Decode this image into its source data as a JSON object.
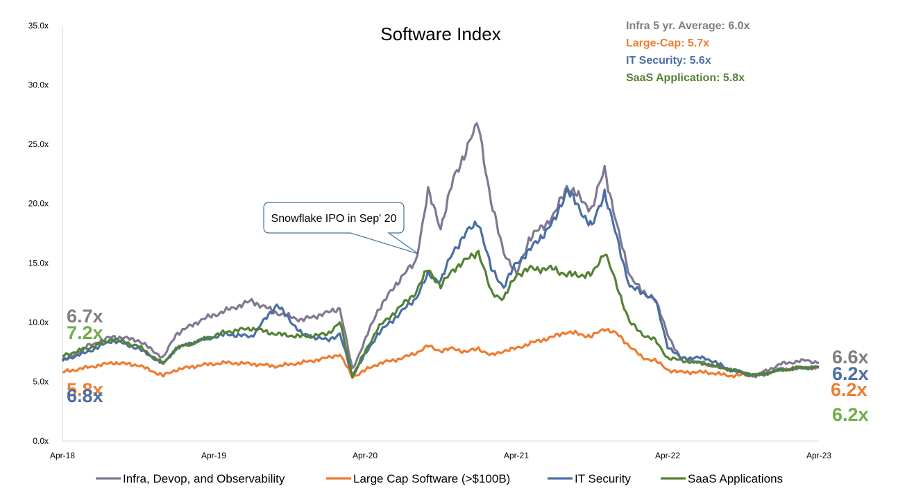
{
  "chart_data": {
    "type": "line",
    "title": "Software Index",
    "xlabel": "",
    "ylabel": "",
    "ylim": [
      0,
      35
    ],
    "y_ticks": [
      "0.0x",
      "5.0x",
      "10.0x",
      "15.0x",
      "20.0x",
      "25.0x",
      "30.0x",
      "35.0x"
    ],
    "x_ticks": [
      "Apr-18",
      "Apr-19",
      "Apr-20",
      "Apr-21",
      "Apr-22",
      "Apr-23"
    ],
    "x_tick_dates": [
      "2018-04",
      "2019-04",
      "2020-04",
      "2021-04",
      "2022-04",
      "2023-04"
    ],
    "grid": false,
    "legend_position": "bottom",
    "series": [
      {
        "name": "Infra, Devop, and Observability",
        "color": "#7f7893",
        "x": [
          "2018-04",
          "2018-06",
          "2018-08",
          "2018-10",
          "2018-12",
          "2019-01",
          "2019-03",
          "2019-05",
          "2019-07",
          "2019-09",
          "2019-11",
          "2020-01",
          "2020-02",
          "2020-03",
          "2020-05",
          "2020-07",
          "2020-08",
          "2020-09",
          "2020-10",
          "2020-11",
          "2020-12",
          "2021-01",
          "2021-02",
          "2021-03",
          "2021-04",
          "2021-05",
          "2021-07",
          "2021-08",
          "2021-10",
          "2021-11",
          "2021-12",
          "2022-01",
          "2022-02",
          "2022-03",
          "2022-04",
          "2022-05",
          "2022-07",
          "2022-09",
          "2022-11",
          "2023-01",
          "2023-03",
          "2023-04"
        ],
        "values": [
          6.7,
          8.0,
          8.8,
          8.5,
          7.0,
          9.0,
          10.2,
          11.0,
          11.8,
          10.8,
          10.2,
          10.8,
          11.2,
          6.0,
          11.0,
          14.0,
          15.0,
          21.0,
          18.0,
          22.0,
          24.5,
          26.8,
          20.0,
          16.0,
          14.0,
          17.0,
          19.0,
          21.5,
          19.5,
          23.0,
          18.0,
          14.0,
          12.5,
          12.0,
          9.0,
          7.0,
          6.5,
          6.0,
          5.5,
          6.5,
          6.8,
          6.6
        ]
      },
      {
        "name": "Large Cap Software (>$100B)",
        "color": "#ed7d31",
        "x": [
          "2018-04",
          "2018-06",
          "2018-08",
          "2018-10",
          "2018-12",
          "2019-01",
          "2019-03",
          "2019-05",
          "2019-07",
          "2019-09",
          "2019-11",
          "2020-01",
          "2020-02",
          "2020-03",
          "2020-05",
          "2020-07",
          "2020-08",
          "2020-09",
          "2020-10",
          "2020-11",
          "2020-12",
          "2021-01",
          "2021-02",
          "2021-03",
          "2021-04",
          "2021-05",
          "2021-07",
          "2021-08",
          "2021-10",
          "2021-11",
          "2021-12",
          "2022-01",
          "2022-02",
          "2022-03",
          "2022-04",
          "2022-05",
          "2022-07",
          "2022-09",
          "2022-11",
          "2023-01",
          "2023-03",
          "2023-04"
        ],
        "values": [
          5.8,
          6.2,
          6.6,
          6.4,
          5.5,
          6.0,
          6.4,
          6.6,
          6.5,
          6.3,
          6.6,
          7.0,
          7.3,
          5.4,
          6.5,
          7.0,
          7.4,
          8.0,
          7.6,
          7.8,
          7.5,
          7.8,
          7.2,
          7.6,
          7.8,
          8.2,
          8.8,
          9.2,
          8.8,
          9.5,
          9.0,
          8.0,
          7.0,
          6.8,
          6.0,
          5.8,
          5.8,
          5.5,
          5.6,
          6.0,
          6.2,
          6.2
        ]
      },
      {
        "name": "IT Security",
        "color": "#4a6fa5",
        "x": [
          "2018-04",
          "2018-06",
          "2018-08",
          "2018-10",
          "2018-12",
          "2019-01",
          "2019-03",
          "2019-05",
          "2019-07",
          "2019-09",
          "2019-11",
          "2020-01",
          "2020-02",
          "2020-03",
          "2020-05",
          "2020-07",
          "2020-08",
          "2020-09",
          "2020-10",
          "2020-11",
          "2020-12",
          "2021-01",
          "2021-02",
          "2021-03",
          "2021-04",
          "2021-05",
          "2021-07",
          "2021-08",
          "2021-10",
          "2021-11",
          "2021-12",
          "2022-01",
          "2022-02",
          "2022-03",
          "2022-04",
          "2022-05",
          "2022-07",
          "2022-09",
          "2022-11",
          "2023-01",
          "2023-03",
          "2023-04"
        ],
        "values": [
          6.8,
          7.5,
          8.5,
          7.8,
          6.5,
          7.8,
          8.5,
          9.0,
          8.8,
          11.5,
          9.0,
          8.5,
          9.0,
          5.5,
          9.0,
          11.0,
          12.0,
          14.0,
          13.5,
          16.0,
          17.5,
          18.5,
          14.5,
          13.0,
          15.0,
          16.0,
          18.5,
          21.2,
          18.0,
          21.0,
          17.0,
          13.0,
          12.5,
          12.0,
          8.0,
          7.0,
          7.0,
          6.0,
          5.5,
          6.0,
          6.2,
          6.2
        ]
      },
      {
        "name": "SaaS Applications",
        "color": "#548235",
        "x": [
          "2018-04",
          "2018-06",
          "2018-08",
          "2018-10",
          "2018-12",
          "2019-01",
          "2019-03",
          "2019-05",
          "2019-07",
          "2019-09",
          "2019-11",
          "2020-01",
          "2020-02",
          "2020-03",
          "2020-05",
          "2020-07",
          "2020-08",
          "2020-09",
          "2020-10",
          "2020-11",
          "2020-12",
          "2021-01",
          "2021-02",
          "2021-03",
          "2021-04",
          "2021-05",
          "2021-07",
          "2021-08",
          "2021-10",
          "2021-11",
          "2021-12",
          "2022-01",
          "2022-02",
          "2022-03",
          "2022-04",
          "2022-05",
          "2022-07",
          "2022-09",
          "2022-11",
          "2023-01",
          "2023-03",
          "2023-04"
        ],
        "values": [
          7.2,
          7.8,
          8.6,
          8.0,
          6.5,
          7.8,
          8.5,
          9.2,
          9.5,
          9.0,
          8.8,
          9.0,
          10.0,
          5.5,
          9.5,
          11.5,
          12.5,
          14.5,
          13.0,
          14.5,
          15.2,
          16.0,
          12.5,
          12.0,
          14.0,
          14.5,
          14.5,
          14.0,
          14.0,
          16.0,
          13.0,
          10.0,
          9.0,
          8.5,
          7.0,
          6.8,
          6.5,
          6.0,
          5.5,
          6.0,
          6.2,
          6.2
        ]
      }
    ],
    "averages": [
      {
        "text": "Infra 5 yr. Average: 6.0x",
        "color": "#7f7f7f"
      },
      {
        "text": "Large-Cap: 5.7x",
        "color": "#ed7d31"
      },
      {
        "text": "IT Security: 5.6x",
        "color": "#4a6fa5"
      },
      {
        "text": "SaaS Application: 5.8x",
        "color": "#548235"
      }
    ],
    "start_labels": [
      {
        "text": "6.7x",
        "color": "#7f7f7f"
      },
      {
        "text": "7.2x",
        "color": "#70ad47"
      },
      {
        "text": "5.8x",
        "color": "#ed7d31"
      },
      {
        "text": "6.8x",
        "color": "#4a6fa5"
      }
    ],
    "end_labels": [
      {
        "text": "6.6x",
        "color": "#7f7f7f"
      },
      {
        "text": "6.2x",
        "color": "#4a6fa5"
      },
      {
        "text": "6.2x",
        "color": "#ed7d31"
      },
      {
        "text": "6.2x",
        "color": "#70ad47"
      }
    ],
    "annotation": {
      "text": "Snowflake IPO in Sep' 20",
      "target_date": "2020-09",
      "target_value": 16.0
    }
  }
}
